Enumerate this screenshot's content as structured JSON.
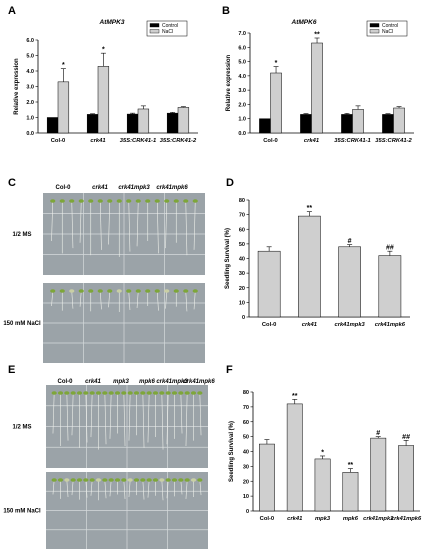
{
  "panel_letters": [
    "A",
    "B",
    "C",
    "D",
    "E",
    "F"
  ],
  "chart_data": [
    {
      "id": "A",
      "type": "bar",
      "title": "AtMPK3",
      "ylabel": "Relative expression",
      "xlabel": "",
      "ylim": [
        0,
        6
      ],
      "yticks": [
        "0.0",
        "1.0",
        "2.0",
        "3.0",
        "4.0",
        "5.0",
        "6.0"
      ],
      "categories": [
        "Col-0",
        "crk41",
        "35S:CRK41-1",
        "35S:CRK41-2"
      ],
      "series": [
        {
          "name": "Control",
          "color": "#000000",
          "values": [
            1.0,
            1.2,
            1.22,
            1.28
          ],
          "errors": [
            0,
            0.04,
            0.06,
            0.05
          ],
          "sig": [
            "",
            "",
            "",
            ""
          ]
        },
        {
          "name": "NaCl",
          "color": "#cfcfcf",
          "values": [
            3.3,
            4.3,
            1.55,
            1.65
          ],
          "errors": [
            0.85,
            0.85,
            0.2,
            0.05
          ],
          "sig": [
            "*",
            "*",
            "",
            ""
          ]
        }
      ],
      "legend_position": "top-right",
      "grid": false
    },
    {
      "id": "B",
      "type": "bar",
      "title": "AtMPK6",
      "ylabel": "Relative expression",
      "xlabel": "",
      "ylim": [
        0,
        7
      ],
      "yticks": [
        "0.0",
        "1.0",
        "2.0",
        "3.0",
        "4.0",
        "5.0",
        "6.0",
        "7.0"
      ],
      "categories": [
        "Col-0",
        "crk41",
        "35S:CRK41-1",
        "35S:CRK41-2"
      ],
      "series": [
        {
          "name": "Control",
          "color": "#000000",
          "values": [
            1.0,
            1.3,
            1.3,
            1.3
          ],
          "errors": [
            0,
            0.06,
            0.08,
            0.05
          ],
          "sig": [
            "",
            "",
            "",
            ""
          ]
        },
        {
          "name": "NaCl",
          "color": "#cfcfcf",
          "values": [
            4.2,
            6.3,
            1.65,
            1.75
          ],
          "errors": [
            0.45,
            0.35,
            0.25,
            0.1
          ],
          "sig": [
            "*",
            "**",
            "",
            ""
          ]
        }
      ],
      "legend_position": "top-right",
      "grid": false
    },
    {
      "id": "D",
      "type": "bar",
      "title": "",
      "ylabel": "Seedling Survival (%)",
      "xlabel": "",
      "ylim": [
        0,
        80
      ],
      "yticks": [
        "0",
        "10",
        "20",
        "30",
        "40",
        "50",
        "60",
        "70",
        "80"
      ],
      "categories": [
        "Col-0",
        "crk41",
        "crk41mpk3",
        "crk41mpk6"
      ],
      "series": [
        {
          "name": "",
          "color": "#cfcfcf",
          "values": [
            45,
            69,
            48,
            42
          ],
          "errors": [
            3,
            3,
            1.5,
            3
          ],
          "sig": [
            "",
            "**",
            "#",
            "##"
          ]
        }
      ],
      "grid": false
    },
    {
      "id": "F",
      "type": "bar",
      "title": "",
      "ylabel": "Seedling Survival (%)",
      "xlabel": "",
      "ylim": [
        0,
        80
      ],
      "yticks": [
        "0",
        "10",
        "20",
        "30",
        "40",
        "50",
        "60",
        "70",
        "80"
      ],
      "categories": [
        "Col-0",
        "crk41",
        "mpk3",
        "mpk6",
        "crk41mpk3",
        "crk41mpk6"
      ],
      "series": [
        {
          "name": "",
          "color": "#cfcfcf",
          "values": [
            45,
            72,
            35,
            26,
            49,
            44
          ],
          "errors": [
            3,
            3,
            2,
            2.5,
            1,
            3.5
          ],
          "sig": [
            "",
            "**",
            "*",
            "**",
            "#",
            "##"
          ]
        }
      ],
      "grid": false
    }
  ],
  "photos": {
    "C": {
      "genotypes": [
        "Col-0",
        "crk41",
        "crk41mpk3",
        "crk41mpk6"
      ],
      "rows": [
        "1/2 MS",
        "150 mM NaCl"
      ],
      "plate_color": "#9ba3a8"
    },
    "E": {
      "genotypes": [
        "Col-0",
        "crk41",
        "mpk3",
        "mpk6",
        "crk41mpk3",
        "crk41mpk6"
      ],
      "rows": [
        "1/2 MS",
        "150 mM NaCl"
      ],
      "plate_color": "#9ba3a8"
    }
  }
}
